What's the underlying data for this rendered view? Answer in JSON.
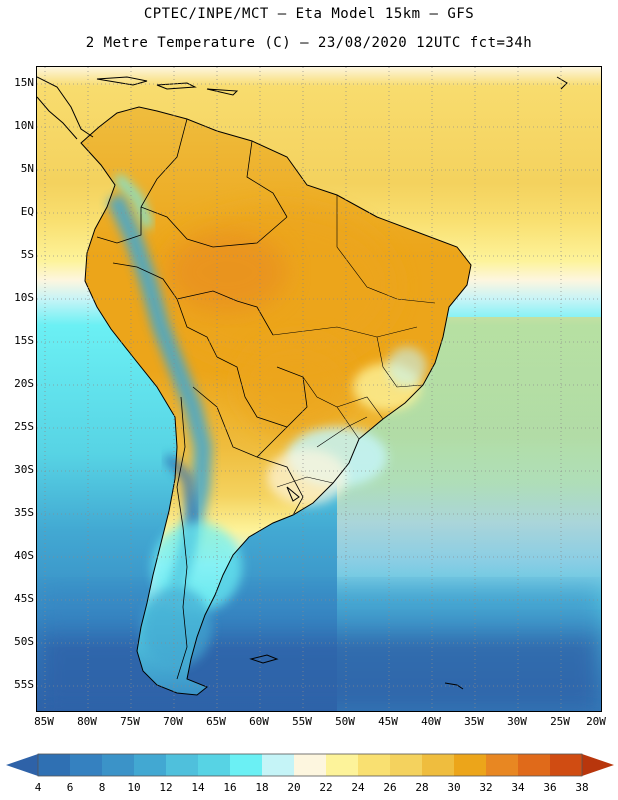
{
  "header": {
    "title_line1": "CPTEC/INPE/MCT –  Eta Model 15km – GFS",
    "title_line2": "2 Metre Temperature (C) – 23/08/2020 12UTC fct=34h"
  },
  "map": {
    "lat_labels": [
      "15N",
      "10N",
      "5N",
      "EQ",
      "5S",
      "10S",
      "15S",
      "20S",
      "25S",
      "30S",
      "35S",
      "40S",
      "45S",
      "50S",
      "55S"
    ],
    "lon_labels": [
      "85W",
      "80W",
      "75W",
      "70W",
      "65W",
      "60W",
      "55W",
      "50W",
      "45W",
      "40W",
      "35W",
      "30W",
      "25W",
      "20W"
    ]
  },
  "colorbar": {
    "labels": [
      "4",
      "6",
      "8",
      "10",
      "12",
      "14",
      "16",
      "18",
      "20",
      "22",
      "24",
      "26",
      "28",
      "30",
      "32",
      "34",
      "36",
      "38"
    ],
    "colors": [
      "#2e62a8",
      "#2f70b3",
      "#3581c0",
      "#3b93c8",
      "#42a8d2",
      "#4fc0dc",
      "#57d3e4",
      "#6bf0f4",
      "#c5f4f7",
      "#fdf6df",
      "#fdf39a",
      "#f9e071",
      "#f4d25e",
      "#efbd3e",
      "#eca51a",
      "#e88722",
      "#e06a1a",
      "#d04c12",
      "#b8360c"
    ]
  }
}
